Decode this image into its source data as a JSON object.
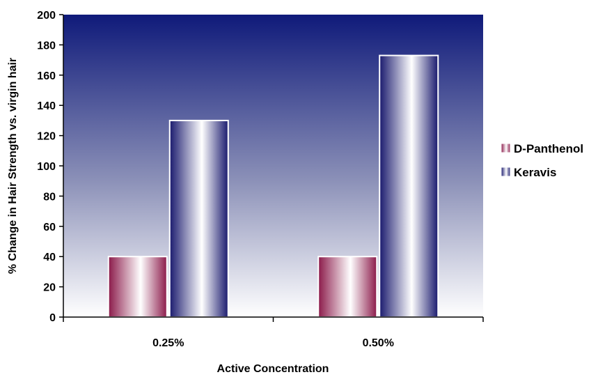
{
  "chart_data": {
    "type": "bar",
    "categories": [
      "0.25%",
      "0.50%"
    ],
    "series": [
      {
        "name": "D-Panthenol",
        "values": [
          40,
          40
        ],
        "color": "#8b1a4a"
      },
      {
        "name": "Keravis",
        "values": [
          130,
          173
        ],
        "color": "#1a1a6e"
      }
    ],
    "xlabel": "Active Concentration",
    "ylabel": "% Change in Hair Strength vs. virgin hair",
    "ylim": [
      0,
      200
    ],
    "yticks": [
      0,
      20,
      40,
      60,
      80,
      100,
      120,
      140,
      160,
      180,
      200
    ],
    "grid": false,
    "legend_position": "right",
    "plot_background": {
      "top_color": "#0f1a7a",
      "bottom_color": "#ffffff"
    }
  }
}
